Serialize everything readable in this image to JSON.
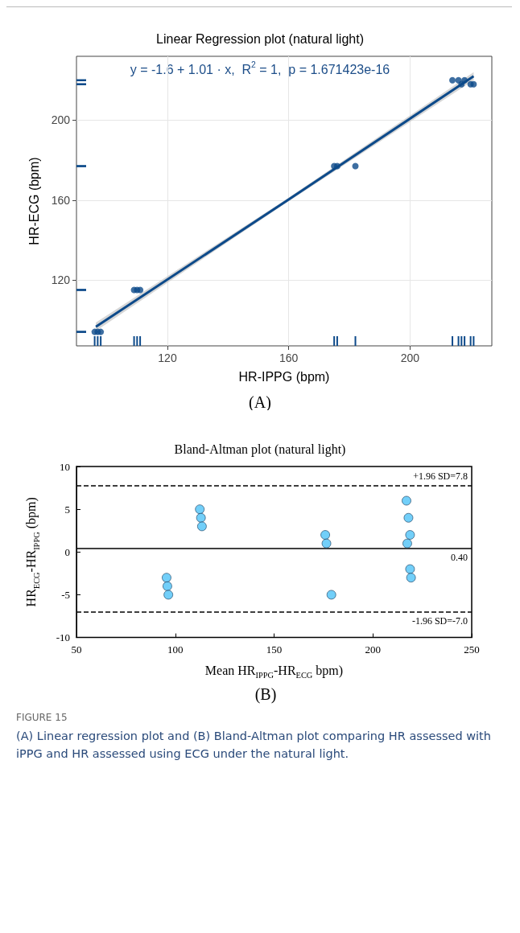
{
  "chart_data": [
    {
      "type": "scatter",
      "title": "Linear Regression plot (natural light)",
      "xlabel": "HR-IPPG (bpm)",
      "ylabel": "HR-ECG (bpm)",
      "annotations": [
        "y = -1.6 + 1.01 · x,  R$^{2}$ = 1,  p = 1.671423e-16",
        "(A)"
      ],
      "xlim": [
        90,
        227
      ],
      "ylim": [
        87,
        232
      ],
      "xticks": [
        120,
        160,
        200
      ],
      "yticks": [
        120,
        160,
        200
      ],
      "grid": true,
      "series": [
        {
          "marker": "circle",
          "color": "#0d4a8a",
          "x": [
            96,
            97,
            98,
            109,
            110,
            111,
            175,
            176,
            182,
            214,
            216,
            218,
            217,
            220,
            221
          ],
          "values": [
            94,
            94,
            94,
            115,
            115,
            115,
            177,
            177,
            177,
            220,
            220,
            220,
            218,
            218,
            218
          ]
        },
        {
          "type": "line",
          "color": "#0d4a8a",
          "x": [
            96.4,
            159,
            221
          ],
          "values": [
            96.6,
            159.3,
            222
          ],
          "lower": [
            94.5,
            158.4,
            220
          ],
          "upper": [
            98.7,
            160.2,
            224
          ]
        }
      ]
    },
    {
      "type": "scatter",
      "title": "Bland-Altman plot (natural light)",
      "xlabel": "Mean HR$_{IPPG}$-HR$_{ECG}$ bpm)",
      "ylabel": "HR$_{ECG}$-HR$_{IPPG}$ (bpm)",
      "annotations": [
        "(B)",
        "FIGURE 15",
        "(A) Linear regression plot and (B) Bland-Altman plot comparing HR assessed with iPPG and HR assessed using ECG under the natural light."
      ],
      "xlim": [
        50,
        250
      ],
      "ylim": [
        -10,
        10
      ],
      "xticks": [
        50,
        100,
        150,
        200,
        250
      ],
      "yticks": [
        -10,
        -5,
        0,
        5,
        10
      ],
      "grid": false,
      "marker": "circle",
      "series": [
        {
          "color": "#4fc3f7",
          "x": [
            112.4,
            113,
            113.5,
            175.9,
            176.5,
            217,
            218,
            218.8,
            217.4,
            218.8,
            219.3,
            95.6,
            96,
            96.5,
            179
          ],
          "values": [
            5,
            4,
            3,
            2,
            1,
            6,
            4,
            2,
            1,
            -2,
            -3,
            -3,
            -4,
            -5,
            -5
          ]
        }
      ],
      "ref_lines": [
        {
          "axis": "y",
          "value": 7.8,
          "label": "+1.96 SD=7.8",
          "line_style": "dashed",
          "color": "#000000"
        },
        {
          "axis": "y",
          "value": 0.4,
          "label": "0.40",
          "line_style": "solid",
          "color": "#000000"
        },
        {
          "axis": "y",
          "value": -7.0,
          "label": "-1.96 SD=-7.0",
          "line_style": "dashed",
          "color": "#000000"
        }
      ]
    }
  ]
}
